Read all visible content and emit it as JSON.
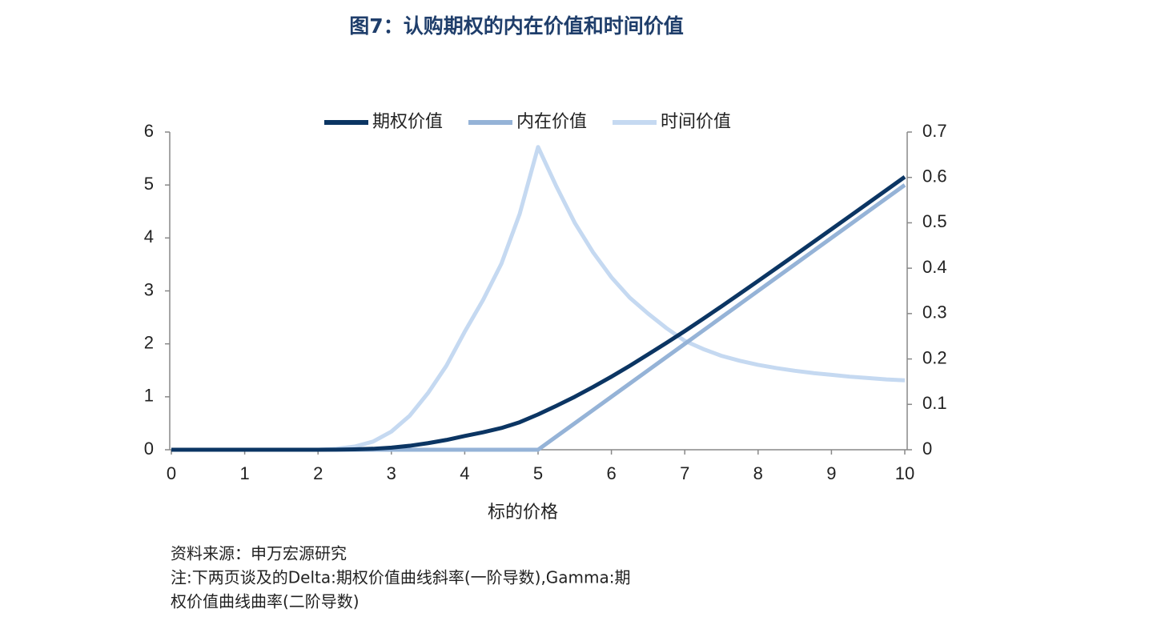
{
  "chart_data": {
    "type": "line",
    "title": "图7：认购期权的内在价值和时间价值",
    "x_label": "标的价格",
    "x": [
      0,
      0.25,
      0.5,
      0.75,
      1,
      1.25,
      1.5,
      1.75,
      2,
      2.25,
      2.5,
      2.75,
      3,
      3.25,
      3.5,
      3.75,
      4,
      4.25,
      4.5,
      4.75,
      5,
      5.25,
      5.5,
      5.75,
      6,
      6.25,
      6.5,
      6.75,
      7,
      7.25,
      7.5,
      7.75,
      8,
      8.25,
      8.5,
      8.75,
      9,
      9.25,
      9.5,
      9.75,
      10
    ],
    "series": [
      {
        "name": "期权价值",
        "color": "#0b3563",
        "values": [
          0,
          0,
          0,
          0,
          0,
          0,
          0,
          0,
          0,
          0.002,
          0.007,
          0.018,
          0.04,
          0.075,
          0.125,
          0.185,
          0.26,
          0.33,
          0.41,
          0.52,
          0.667,
          0.83,
          1.0,
          1.185,
          1.38,
          1.585,
          1.8,
          2.018,
          2.24,
          2.472,
          2.707,
          2.946,
          3.187,
          3.43,
          3.674,
          3.919,
          4.165,
          4.411,
          4.658,
          4.905,
          5.153
        ]
      },
      {
        "name": "内在价值",
        "color": "#95b3d7",
        "values": [
          0,
          0,
          0,
          0,
          0,
          0,
          0,
          0,
          0,
          0,
          0,
          0,
          0,
          0,
          0,
          0,
          0,
          0,
          0,
          0,
          0,
          0.25,
          0.5,
          0.75,
          1,
          1.25,
          1.5,
          1.75,
          2,
          2.25,
          2.5,
          2.75,
          3,
          3.25,
          3.5,
          3.75,
          4,
          4.25,
          4.5,
          4.75,
          5
        ]
      },
      {
        "name": "时间价值",
        "color": "#c5d9f1",
        "axis": "y2",
        "values": [
          0,
          0,
          0,
          0,
          0,
          0,
          0,
          0,
          0,
          0.002,
          0.007,
          0.018,
          0.04,
          0.075,
          0.125,
          0.185,
          0.26,
          0.33,
          0.41,
          0.52,
          0.667,
          0.58,
          0.5,
          0.435,
          0.38,
          0.335,
          0.3,
          0.268,
          0.24,
          0.222,
          0.207,
          0.196,
          0.187,
          0.18,
          0.174,
          0.169,
          0.165,
          0.161,
          0.158,
          0.155,
          0.153
        ]
      }
    ],
    "xlim": [
      0,
      10
    ],
    "xticks": [
      0,
      1,
      2,
      3,
      4,
      5,
      6,
      7,
      8,
      9,
      10
    ],
    "ylim": [
      0,
      6
    ],
    "yticks": [
      0,
      1,
      2,
      3,
      4,
      5,
      6
    ],
    "y2lim": [
      0,
      0.7
    ],
    "y2ticks": [
      0,
      0.1,
      0.2,
      0.3,
      0.4,
      0.5,
      0.6,
      0.7
    ],
    "legend": "top",
    "source": "资料来源：申万宏源研究",
    "note": [
      "注:下两页谈及的Delta:期权价值曲线斜率(一阶导数),Gamma:期",
      "权价值曲线曲率(二阶导数)"
    ]
  }
}
